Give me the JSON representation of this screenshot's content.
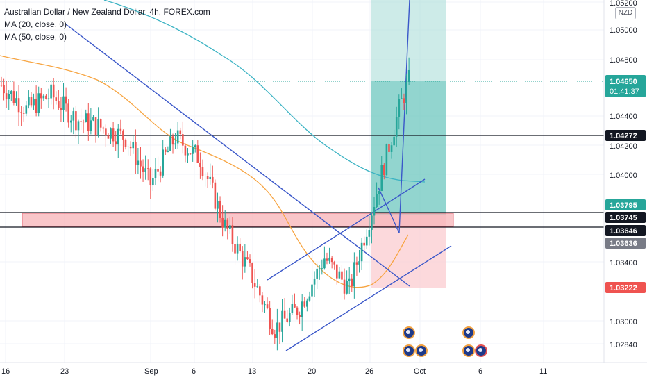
{
  "header": {
    "symbol_title": "Australian Dollar / New Zealand Dollar, 4h, FOREX.com",
    "ma1_label": "MA (20, close, 0)",
    "ma2_label": "MA (50, close, 0)",
    "currency_badge": "NZD"
  },
  "colors": {
    "up": "#26a69a",
    "down": "#ef5350",
    "ma20": "#3bb3c3",
    "ma50": "#f7a440",
    "trendline": "#3a57c9",
    "zone": "#f7b4b8",
    "zone_border": "#e04050",
    "profit": "#7ecdc6",
    "loss": "#f9c9cc",
    "current": "#26a69a"
  },
  "chart_data": {
    "type": "candlestick",
    "title": "Australian Dollar / New Zealand Dollar, 4h, FOREX.com",
    "x_tick_labels": [
      "16",
      "23",
      "Sep",
      "6",
      "13",
      "20",
      "26",
      "Oct",
      "6",
      "11"
    ],
    "y_tick_labels": [
      "1.05200",
      "1.05000",
      "1.04800",
      "1.04400",
      "1.04200",
      "1.04000",
      "1.03400",
      "1.03000",
      "1.02840"
    ],
    "ylim": [
      1.0266,
      1.0522
    ],
    "price_labels": [
      {
        "value": "1.04650",
        "sub": "01:41:37",
        "kind": "current"
      },
      {
        "value": "1.04272",
        "kind": "level"
      },
      {
        "value": "1.03795",
        "kind": "target-top"
      },
      {
        "value": "1.03745",
        "kind": "level"
      },
      {
        "value": "1.03646",
        "kind": "level"
      },
      {
        "value": "1.03636",
        "kind": "stop-neutral"
      },
      {
        "value": "1.03222",
        "kind": "stop"
      }
    ],
    "series_trend": [
      {
        "x": 0,
        "y": 1.0462
      },
      {
        "x": 10,
        "y": 1.0445
      },
      {
        "x": 20,
        "y": 1.0455
      },
      {
        "x": 30,
        "y": 1.0438
      },
      {
        "x": 40,
        "y": 1.0432
      },
      {
        "x": 50,
        "y": 1.0425
      },
      {
        "x": 60,
        "y": 1.0392
      },
      {
        "x": 70,
        "y": 1.0425
      },
      {
        "x": 80,
        "y": 1.041
      },
      {
        "x": 90,
        "y": 1.0362
      },
      {
        "x": 100,
        "y": 1.033
      },
      {
        "x": 110,
        "y": 1.029
      },
      {
        "x": 120,
        "y": 1.0305
      },
      {
        "x": 130,
        "y": 1.034
      },
      {
        "x": 140,
        "y": 1.0318
      },
      {
        "x": 150,
        "y": 1.038
      },
      {
        "x": 160,
        "y": 1.0445
      },
      {
        "x": 164,
        "y": 1.0465
      }
    ]
  }
}
